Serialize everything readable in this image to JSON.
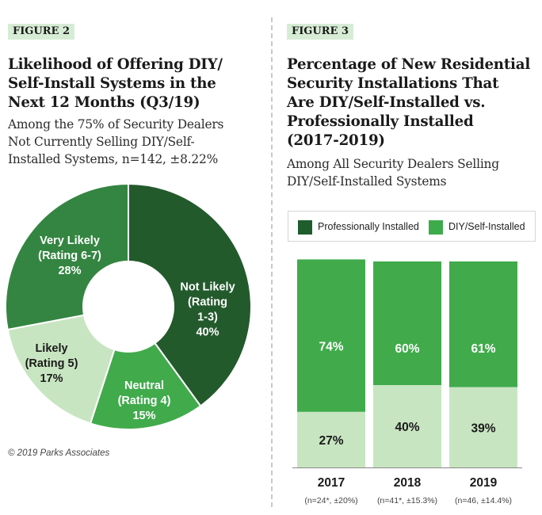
{
  "figure2": {
    "tag": "FIGURE 2",
    "title_lines": [
      "Likelihood of Offering DIY/",
      "Self-Install Systems in the",
      "Next 12 Months (Q3/19)"
    ],
    "subtitle_lines": [
      "Among the 75% of Security Dealers",
      "Not Currently Selling DIY/Self-",
      "Installed Systems, n=142, ±8.22%"
    ]
  },
  "figure3": {
    "tag": "FIGURE 3",
    "title_lines": [
      "Percentage of New Residential",
      "Security Installations That",
      "Are DIY/Self-Installed vs.",
      "Professionally Installed",
      "(2017-2019)"
    ],
    "subtitle_lines": [
      "Among All Security Dealers Selling",
      "DIY/Self-Installed Systems"
    ]
  },
  "copyright": "© 2019 Parks Associates",
  "legend": {
    "items": [
      {
        "label": "Professionally Installed",
        "color": "#1f5c2e"
      },
      {
        "label": "DIY/Self-Installed",
        "color": "#3eab4b"
      }
    ]
  },
  "chart_data": [
    {
      "type": "pie",
      "title": "Likelihood of Offering DIY/Self-Install Systems in the Next 12 Months (Q3/19)",
      "donut": true,
      "slices": [
        {
          "name": "Not Likely",
          "label_lines": [
            "Not Likely",
            "(Rating",
            "1-3)",
            "40%"
          ],
          "value": 40,
          "color": "#235a2c",
          "text_color": "#ffffff"
        },
        {
          "name": "Neutral",
          "label_lines": [
            "Neutral",
            "(Rating 4)",
            "15%"
          ],
          "value": 15,
          "color": "#41ab4c",
          "text_color": "#ffffff"
        },
        {
          "name": "Likely",
          "label_lines": [
            "Likely",
            "(Rating 5)",
            "17%"
          ],
          "value": 17,
          "color": "#c8e5c1",
          "text_color": "#1a1a1a"
        },
        {
          "name": "Very Likely",
          "label_lines": [
            "Very Likely",
            "(Rating 6-7)",
            "28%"
          ],
          "value": 28,
          "color": "#348541",
          "text_color": "#ffffff"
        }
      ]
    },
    {
      "type": "bar",
      "stacked": true,
      "title": "Percentage of New Residential Security Installations That Are DIY/Self-Installed vs. Professionally Installed (2017-2019)",
      "categories": [
        "2017",
        "2018",
        "2019"
      ],
      "category_notes": [
        "(n=24*, ±20%)",
        "(n=41*, ±15.3%)",
        "(n=46, ±14.4%)"
      ],
      "ylim": [
        0,
        100
      ],
      "series": [
        {
          "name": "Professionally Installed",
          "values": [
            27,
            40,
            39
          ],
          "labels": [
            "27%",
            "40%",
            "39%"
          ],
          "color": "#c8e5c1",
          "text_color": "#1a1a1a"
        },
        {
          "name": "DIY/Self-Installed",
          "values": [
            74,
            60,
            61
          ],
          "labels": [
            "74%",
            "60%",
            "61%"
          ],
          "color": "#41ab4c",
          "text_color": "#ffffff"
        }
      ]
    }
  ]
}
